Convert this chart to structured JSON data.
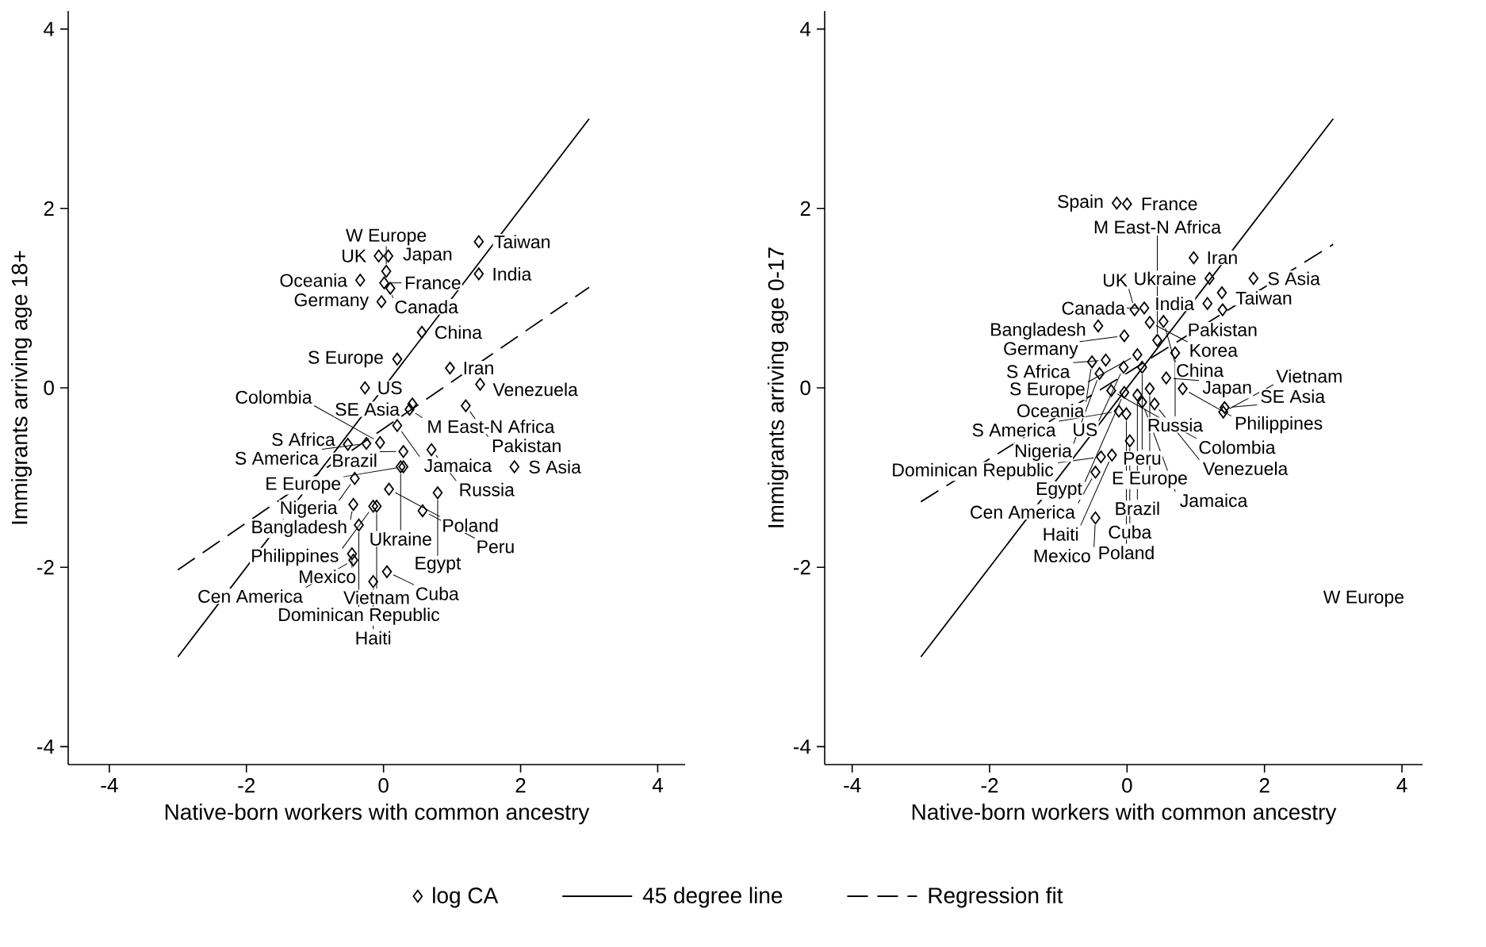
{
  "chart_data": [
    {
      "type": "scatter",
      "xlabel": "Native-born workers with common ancestry",
      "ylabel": "Immigrants arriving age 18+",
      "xlim": [
        -4.6,
        4.4
      ],
      "ylim": [
        -4.2,
        4.2
      ],
      "xticks": [
        -4,
        -2,
        0,
        2,
        4
      ],
      "yticks": [
        -4,
        -2,
        0,
        2,
        4
      ],
      "grid": false,
      "legend": "bottom",
      "series": [
        {
          "name": "log CA",
          "type": "scatter",
          "marker": "diamond",
          "color": "#000000",
          "x": [
            1.39,
            1.39,
            -0.07,
            0.07,
            0.04,
            -0.34,
            0.01,
            0.1,
            -0.03,
            0.56,
            0.2,
            0.97,
            -0.27,
            1.41,
            0.42,
            0.38,
            1.2,
            0.2,
            0.29,
            -0.52,
            -0.25,
            -0.05,
            0.7,
            0.25,
            0.29,
            1.91,
            -0.42,
            0.08,
            0.79,
            -0.44,
            -0.15,
            -0.1,
            0.57,
            -0.36,
            -0.46,
            -0.44,
            0.05,
            -0.15
          ],
          "values": [
            1.63,
            1.27,
            1.47,
            1.47,
            1.3,
            1.2,
            1.17,
            1.11,
            0.96,
            0.62,
            0.32,
            0.22,
            0.0,
            0.04,
            -0.18,
            -0.24,
            -0.2,
            -0.42,
            -0.71,
            -0.63,
            -0.62,
            -0.61,
            -0.69,
            -0.88,
            -0.88,
            -0.88,
            -1.01,
            -1.13,
            -1.17,
            -1.3,
            -1.32,
            -1.32,
            -1.37,
            -1.53,
            -1.85,
            -1.92,
            -2.05,
            -2.16
          ]
        },
        {
          "name": "45 degree line",
          "type": "line",
          "line_style": "solid",
          "color": "#000000",
          "x": [
            -3,
            3
          ],
          "values": [
            -3,
            3
          ]
        },
        {
          "name": "Regression fit",
          "type": "line",
          "line_style": "dashed",
          "color": "#000000",
          "x": [
            -3,
            3
          ],
          "values": [
            -2.03,
            1.12
          ]
        }
      ],
      "annotations": [
        {
          "text": "Taiwan",
          "x": 1.39,
          "y": 1.63
        },
        {
          "text": "India",
          "x": 1.39,
          "y": 1.27
        },
        {
          "text": "UK",
          "x": -0.07,
          "y": 1.47
        },
        {
          "text": "Japan",
          "x": 0.07,
          "y": 1.47
        },
        {
          "text": "W Europe",
          "x": 0.04,
          "y": 1.3
        },
        {
          "text": "Oceania",
          "x": -0.34,
          "y": 1.2
        },
        {
          "text": "France",
          "x": 0.01,
          "y": 1.17
        },
        {
          "text": "Canada",
          "x": 0.1,
          "y": 1.11
        },
        {
          "text": "Germany",
          "x": -0.03,
          "y": 0.96
        },
        {
          "text": "China",
          "x": 0.56,
          "y": 0.62
        },
        {
          "text": "S Europe",
          "x": 0.2,
          "y": 0.32
        },
        {
          "text": "Iran",
          "x": 0.97,
          "y": 0.22
        },
        {
          "text": "US",
          "x": -0.27,
          "y": 0.0
        },
        {
          "text": "Venezuela",
          "x": 1.41,
          "y": 0.04
        },
        {
          "text": "SE Asia",
          "x": 0.42,
          "y": -0.18
        },
        {
          "text": "M East-N Africa",
          "x": 0.38,
          "y": -0.24
        },
        {
          "text": "Pakistan",
          "x": 1.2,
          "y": -0.2
        },
        {
          "text": "Jamaica",
          "x": 0.2,
          "y": -0.42
        },
        {
          "text": "Brazil",
          "x": 0.29,
          "y": -0.71
        },
        {
          "text": "S Africa",
          "x": -0.52,
          "y": -0.63
        },
        {
          "text": "S America",
          "x": -0.25,
          "y": -0.62
        },
        {
          "text": "Colombia",
          "x": -0.05,
          "y": -0.61
        },
        {
          "text": "Russia",
          "x": 0.7,
          "y": -0.69
        },
        {
          "text": "Ukraine",
          "x": 0.25,
          "y": -0.88
        },
        {
          "text": "E Europe",
          "x": 0.29,
          "y": -0.88
        },
        {
          "text": "S Asia",
          "x": 1.91,
          "y": -0.88
        },
        {
          "text": "Nigeria",
          "x": -0.42,
          "y": -1.01
        },
        {
          "text": "Poland",
          "x": 0.08,
          "y": -1.13
        },
        {
          "text": "Egypt",
          "x": 0.79,
          "y": -1.17
        },
        {
          "text": "Bangladesh",
          "x": -0.44,
          "y": -1.3
        },
        {
          "text": "Philippines",
          "x": -0.15,
          "y": -1.32
        },
        {
          "text": "Vietnam",
          "x": -0.1,
          "y": -1.32
        },
        {
          "text": "Peru",
          "x": 0.57,
          "y": -1.37
        },
        {
          "text": "Dominican Republic",
          "x": -0.36,
          "y": -1.53
        },
        {
          "text": "Mexico",
          "x": -0.46,
          "y": -1.85
        },
        {
          "text": "Cen America",
          "x": -0.44,
          "y": -1.92
        },
        {
          "text": "Cuba",
          "x": 0.05,
          "y": -2.05
        },
        {
          "text": "Haiti",
          "x": -0.15,
          "y": -2.16
        }
      ]
    },
    {
      "type": "scatter",
      "xlabel": "Native-born workers with common ancestry",
      "ylabel": "Immigrants arriving age 0-17",
      "xlim": [
        -4.4,
        4.3
      ],
      "ylim": [
        -4.2,
        4.2
      ],
      "xticks": [
        -4,
        -2,
        0,
        2,
        4
      ],
      "yticks": [
        -4,
        -2,
        0,
        2,
        4
      ],
      "grid": false,
      "series": [
        {
          "type": "scatter",
          "marker": "diamond",
          "color": "#000000",
          "x": [
            -0.15,
            0.0,
            0.97,
            1.84,
            1.2,
            1.38,
            1.17,
            1.39,
            0.25,
            0.11,
            0.33,
            0.53,
            -0.42,
            -0.04,
            0.44,
            0.7,
            0.15,
            -0.31,
            -0.51,
            -0.05,
            0.22,
            -0.4,
            0.57,
            0.81,
            0.33,
            -0.23,
            -0.04,
            0.15,
            0.22,
            1.42,
            1.4,
            0.4,
            -0.12,
            -0.01,
            0.04,
            -0.22,
            -0.38,
            -0.46,
            -0.46
          ],
          "values": [
            2.06,
            2.05,
            1.45,
            1.22,
            1.22,
            1.06,
            0.94,
            0.87,
            0.89,
            0.87,
            0.73,
            0.74,
            0.69,
            0.58,
            0.53,
            0.39,
            0.37,
            0.31,
            0.29,
            0.23,
            0.23,
            0.16,
            0.11,
            -0.01,
            -0.01,
            -0.03,
            -0.05,
            -0.08,
            -0.16,
            -0.22,
            -0.27,
            -0.18,
            -0.26,
            -0.29,
            -0.59,
            -0.75,
            -0.77,
            -0.94,
            -1.45
          ]
        },
        {
          "type": "line",
          "line_style": "solid",
          "color": "#000000",
          "x": [
            -3,
            3
          ],
          "values": [
            -3,
            3
          ]
        },
        {
          "type": "line",
          "line_style": "dashed",
          "color": "#000000",
          "x": [
            -3,
            3
          ],
          "values": [
            -1.27,
            1.6
          ]
        }
      ],
      "annotations": [
        {
          "text": "Spain",
          "x": -0.15,
          "y": 2.06
        },
        {
          "text": "France",
          "x": 0.0,
          "y": 2.05
        },
        {
          "text": "Iran",
          "x": 0.97,
          "y": 1.45
        },
        {
          "text": "S Asia",
          "x": 1.84,
          "y": 1.22
        },
        {
          "text": "Ukraine",
          "x": 1.2,
          "y": 1.22
        },
        {
          "text": "Taiwan",
          "x": 1.38,
          "y": 1.06
        },
        {
          "text": "India",
          "x": 1.17,
          "y": 0.94
        },
        {
          "text": "Pakistan",
          "x": 1.39,
          "y": 0.87
        },
        {
          "text": "Canada",
          "x": 0.25,
          "y": 0.89
        },
        {
          "text": "UK",
          "x": 0.11,
          "y": 0.87
        },
        {
          "text": "Korea",
          "x": 0.33,
          "y": 0.73
        },
        {
          "text": "China",
          "x": 0.53,
          "y": 0.74
        },
        {
          "text": "Bangladesh",
          "x": -0.42,
          "y": 0.69
        },
        {
          "text": "Germany",
          "x": -0.04,
          "y": 0.58
        },
        {
          "text": "M East-N Africa",
          "x": 0.44,
          "y": 0.53
        },
        {
          "text": "Russia",
          "x": 0.7,
          "y": 0.39
        },
        {
          "text": "S Europe",
          "x": 0.15,
          "y": 0.37
        },
        {
          "text": "S Africa",
          "x": -0.31,
          "y": 0.31
        },
        {
          "text": "Oceania",
          "x": -0.51,
          "y": 0.29
        },
        {
          "text": "US",
          "x": -0.05,
          "y": 0.23
        },
        {
          "text": "Peru",
          "x": 0.22,
          "y": 0.23
        },
        {
          "text": "Nigeria",
          "x": -0.4,
          "y": 0.16
        },
        {
          "text": "Japan",
          "x": 0.57,
          "y": 0.11
        },
        {
          "text": "Philippines",
          "x": 0.81,
          "y": -0.01
        },
        {
          "text": "E Europe",
          "x": 0.33,
          "y": -0.01
        },
        {
          "text": "Colombia",
          "x": -0.23,
          "y": -0.03
        },
        {
          "text": "Egypt",
          "x": -0.04,
          "y": -0.05
        },
        {
          "text": "Brazil",
          "x": 0.15,
          "y": -0.08
        },
        {
          "text": "Jamaica",
          "x": 0.22,
          "y": -0.16
        },
        {
          "text": "SE Asia",
          "x": 1.42,
          "y": -0.22
        },
        {
          "text": "Vietnam",
          "x": 1.4,
          "y": -0.27
        },
        {
          "text": "Venezuela",
          "x": 0.4,
          "y": -0.18
        },
        {
          "text": "S America",
          "x": -0.12,
          "y": -0.26
        },
        {
          "text": "Poland",
          "x": -0.01,
          "y": -0.29
        },
        {
          "text": "Cuba",
          "x": 0.04,
          "y": -0.59
        },
        {
          "text": "Haiti",
          "x": -0.22,
          "y": -0.75
        },
        {
          "text": "Dominican Republic",
          "x": -0.38,
          "y": -0.77
        },
        {
          "text": "Cen America",
          "x": -0.46,
          "y": -0.94
        },
        {
          "text": "Mexico",
          "x": -0.46,
          "y": -1.45
        },
        "W Europe"
      ]
    }
  ]
}
